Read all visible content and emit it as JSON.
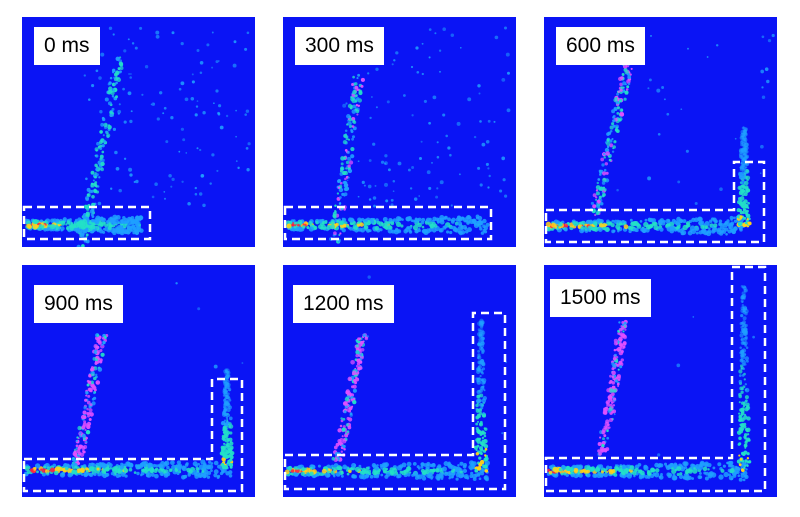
{
  "panels": [
    {
      "time_label": "0 ms"
    },
    {
      "time_label": "300 ms"
    },
    {
      "time_label": "600 ms"
    },
    {
      "time_label": "900 ms"
    },
    {
      "time_label": "1200 ms"
    },
    {
      "time_label": "1500 ms"
    }
  ],
  "colors": {
    "background": "#0a14f5",
    "box_outline": "#ffffff",
    "speckle_low": "#1fa0ff",
    "speckle_mid": "#22e0c8",
    "speckle_high": "#ffd21a",
    "speckle_peak": "#ff2040",
    "speckle_magenta": "#e050ff"
  }
}
